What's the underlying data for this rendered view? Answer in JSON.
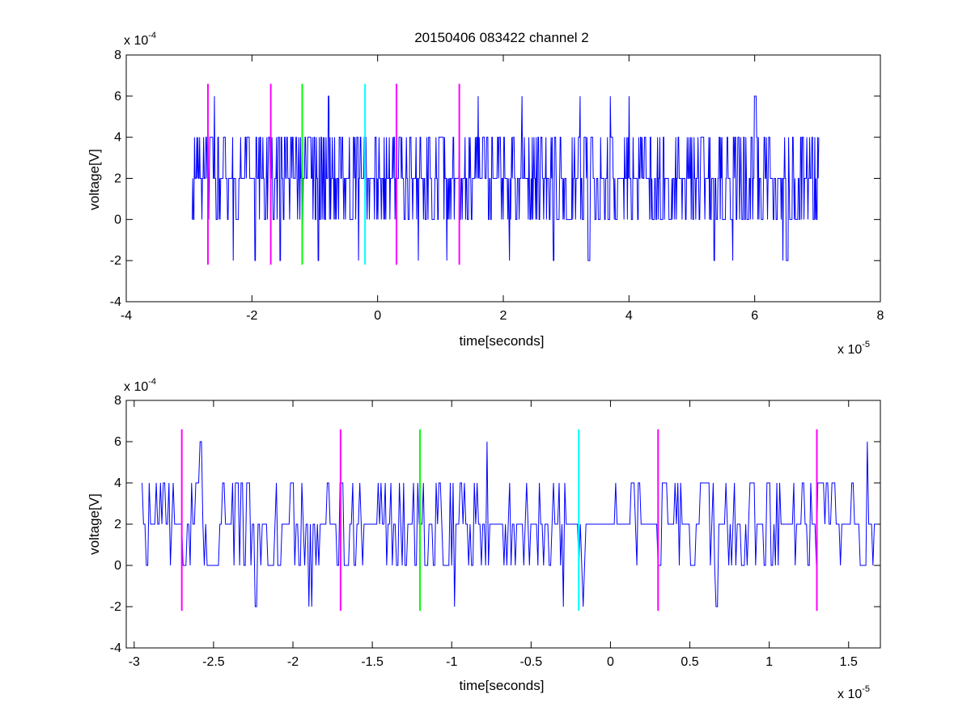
{
  "chart_data": [
    {
      "type": "line",
      "title": "20150406 083422 channel 2",
      "xlabel": "time[seconds]",
      "ylabel": "voltage[V]",
      "xlim": [
        -4,
        8
      ],
      "ylim": [
        -4,
        8
      ],
      "x_ticks": [
        "-4",
        "-2",
        "0",
        "2",
        "4",
        "6",
        "8"
      ],
      "y_ticks": [
        "-4",
        "-2",
        "0",
        "2",
        "4",
        "6",
        "8"
      ],
      "x_exponent": {
        "base": "x 10",
        "power": "-5"
      },
      "y_exponent": {
        "base": "x 10",
        "power": "-4"
      },
      "grid": false,
      "series_color": "#0000ff",
      "signal": {
        "x_start": -2.95,
        "x_end": 7.02,
        "levels": [
          -2,
          0,
          2,
          4,
          6
        ],
        "typical_range": [
          0,
          4
        ],
        "dips_to_minus2_at": [
          -2.3,
          -1.95,
          -1.55,
          -1.2,
          -0.95,
          -0.3,
          0.65,
          1.1,
          2.1,
          2.8,
          3.35,
          5.35,
          5.65,
          6.45,
          6.5
        ],
        "peaks_to_6_at": [
          -2.6,
          -0.78,
          1.6,
          2.3,
          3.22,
          3.7,
          4.0,
          6.0
        ]
      },
      "markers": [
        {
          "x": -2.7,
          "y_range": [
            -2.2,
            6.6
          ],
          "color": "#ff00ff"
        },
        {
          "x": -1.7,
          "y_range": [
            -2.2,
            6.6
          ],
          "color": "#ff00ff"
        },
        {
          "x": -1.2,
          "y_range": [
            -2.2,
            6.6
          ],
          "color": "#00ff00"
        },
        {
          "x": -0.2,
          "y_range": [
            -2.2,
            6.6
          ],
          "color": "#00ffff"
        },
        {
          "x": 0.3,
          "y_range": [
            -2.2,
            6.6
          ],
          "color": "#ff00ff"
        },
        {
          "x": 1.3,
          "y_range": [
            -2.2,
            6.6
          ],
          "color": "#ff00ff"
        }
      ]
    },
    {
      "type": "line",
      "title": "",
      "xlabel": "time[seconds]",
      "ylabel": "voltage[V]",
      "xlim": [
        -3.05,
        1.7
      ],
      "ylim": [
        -4,
        8
      ],
      "x_ticks": [
        "-3",
        "-2.5",
        "-2",
        "-1.5",
        "-1",
        "-0.5",
        "0",
        "0.5",
        "1",
        "1.5"
      ],
      "y_ticks": [
        "-4",
        "-2",
        "0",
        "2",
        "4",
        "6",
        "8"
      ],
      "x_exponent": {
        "base": "x 10",
        "power": "-5"
      },
      "y_exponent": {
        "base": "x 10",
        "power": "-4"
      },
      "grid": false,
      "series_color": "#0000ff",
      "signal": {
        "x_start": -2.95,
        "x_end": 1.68,
        "levels": [
          -2,
          0,
          2,
          4,
          6
        ],
        "typical_range": [
          0,
          4
        ],
        "dips_to_minus2_at": [
          -2.24,
          -1.9,
          -1.88,
          -0.98,
          -0.3,
          -0.17,
          0.67
        ],
        "peaks_to_6_at": [
          -2.58,
          -0.78,
          1.62
        ]
      },
      "markers": [
        {
          "x": -2.7,
          "y_range": [
            -2.2,
            6.6
          ],
          "color": "#ff00ff"
        },
        {
          "x": -1.7,
          "y_range": [
            -2.2,
            6.6
          ],
          "color": "#ff00ff"
        },
        {
          "x": -1.2,
          "y_range": [
            -2.2,
            6.6
          ],
          "color": "#00ff00"
        },
        {
          "x": -0.2,
          "y_range": [
            -2.2,
            6.6
          ],
          "color": "#00ffff"
        },
        {
          "x": 0.3,
          "y_range": [
            -2.2,
            6.6
          ],
          "color": "#ff00ff"
        },
        {
          "x": 1.3,
          "y_range": [
            -2.2,
            6.6
          ],
          "color": "#ff00ff"
        }
      ]
    }
  ]
}
